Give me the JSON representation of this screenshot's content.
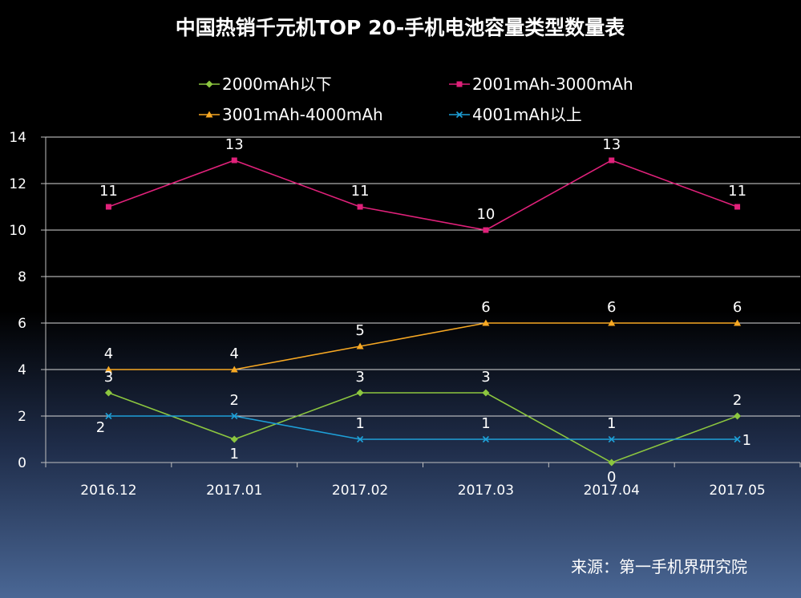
{
  "chart_data": {
    "type": "line",
    "title": "中国热销千元机TOP 20-手机电池容量类型数量表",
    "categories": [
      "2016.12",
      "2017.01",
      "2017.02",
      "2017.03",
      "2017.04",
      "2017.05"
    ],
    "ylim": [
      0,
      14
    ],
    "yticks": [
      0,
      2,
      4,
      6,
      8,
      10,
      12,
      14
    ],
    "grid": true,
    "legend_position": "top",
    "series": [
      {
        "name": "2000mAh以下",
        "values": [
          3,
          1,
          3,
          3,
          0,
          2
        ],
        "color": "#8cc63f",
        "marker": "diamond",
        "label_side": [
          "above",
          "below",
          "above",
          "above",
          "below",
          "above"
        ]
      },
      {
        "name": "2001mAh-3000mAh",
        "values": [
          11,
          13,
          11,
          10,
          13,
          11
        ],
        "color": "#e0217a",
        "marker": "square",
        "label_side": [
          "above",
          "above",
          "above",
          "above",
          "above",
          "above"
        ]
      },
      {
        "name": "3001mAh-4000mAh",
        "values": [
          4,
          4,
          5,
          6,
          6,
          6
        ],
        "color": "#f7a823",
        "marker": "triangle",
        "label_side": [
          "above",
          "above",
          "above",
          "above",
          "above",
          "above"
        ]
      },
      {
        "name": "4001mAh以上",
        "values": [
          2,
          2,
          1,
          1,
          1,
          1
        ],
        "color": "#1ea0d8",
        "marker": "x",
        "label_side": [
          "below-left",
          "above",
          "above",
          "above",
          "above",
          "right"
        ]
      }
    ],
    "source": "来源：第一手机界研究院"
  }
}
